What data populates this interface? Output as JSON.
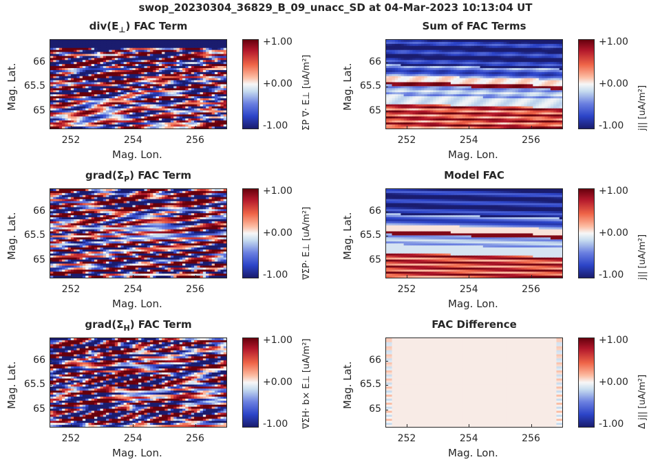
{
  "figure_title": "swop_20230304_36829_B_09_unacc_SD at 04-Mar-2023 10:13:04 UT",
  "colorbar_ticks": [
    "+1.00",
    "+0.00",
    "-1.00"
  ],
  "x_ticks": [
    "252",
    "254",
    "256"
  ],
  "y_ticks": [
    "66",
    "65.5",
    "65"
  ],
  "xlabel": "Mag. Lon.",
  "ylabel": "Mag. Lat.",
  "colors": {
    "high": "#67000d",
    "mid": "#f7f7f7",
    "low": "#1a1c6e"
  },
  "chart_data": [
    {
      "type": "heatmap",
      "title": "div(E⊥) FAC Term",
      "title_main": "div(E",
      "title_sub": "⊥",
      "title_end": ") FAC Term",
      "colorbar_label": "ΣP ∇· E⊥  [uA/m²]",
      "pattern": "noisy",
      "xlabel": "Mag. Lon.",
      "ylabel": "Mag. Lat.",
      "xlim": [
        251.3,
        257.1
      ],
      "ylim": [
        64.65,
        66.45
      ],
      "clim": [
        -1,
        1
      ]
    },
    {
      "type": "heatmap",
      "title": "Sum of FAC Terms",
      "title_main": "Sum of FAC Terms",
      "title_sub": "",
      "title_end": "",
      "colorbar_label": "j|| [uA/m²]",
      "pattern": "bands",
      "xlabel": "Mag. Lon.",
      "ylabel": "Mag. Lat.",
      "xlim": [
        251.3,
        257.1
      ],
      "ylim": [
        64.65,
        66.45
      ],
      "clim": [
        -1,
        1
      ]
    },
    {
      "type": "heatmap",
      "title": "grad(ΣP) FAC Term",
      "title_main": "grad(Σ",
      "title_sub": "P",
      "title_end": ") FAC Term",
      "colorbar_label": "∇ΣP· E⊥  [uA/m²]",
      "pattern": "noisy2",
      "xlabel": "Mag. Lon.",
      "ylabel": "Mag. Lat.",
      "xlim": [
        251.3,
        257.1
      ],
      "ylim": [
        64.65,
        66.45
      ],
      "clim": [
        -1,
        1
      ]
    },
    {
      "type": "heatmap",
      "title": "Model FAC",
      "title_main": "Model FAC",
      "title_sub": "",
      "title_end": "",
      "colorbar_label": "j|| [uA/m²]",
      "pattern": "bands_clean",
      "xlabel": "Mag. Lon.",
      "ylabel": "Mag. Lat.",
      "xlim": [
        251.3,
        257.1
      ],
      "ylim": [
        64.65,
        66.45
      ],
      "clim": [
        -1,
        1
      ]
    },
    {
      "type": "heatmap",
      "title": "grad(ΣH) FAC Term",
      "title_main": "grad(Σ",
      "title_sub": "H",
      "title_end": ") FAC Term",
      "colorbar_label": "∇ΣH· b× E⊥  [uA/m²]",
      "pattern": "noisy3",
      "xlabel": "Mag. Lon.",
      "ylabel": "Mag. Lat.",
      "xlim": [
        251.3,
        257.1
      ],
      "ylim": [
        64.65,
        66.45
      ],
      "clim": [
        -1,
        1
      ]
    },
    {
      "type": "heatmap",
      "title": "FAC Difference",
      "title_main": "FAC Difference",
      "title_sub": "",
      "title_end": "",
      "colorbar_label": "Δ j|| [uA/m²]",
      "pattern": "flat",
      "xlabel": "Mag. Lon.",
      "ylabel": "Mag. Lat.",
      "xlim": [
        251.3,
        257.1
      ],
      "ylim": [
        64.65,
        66.45
      ],
      "clim": [
        -1,
        1
      ]
    }
  ]
}
